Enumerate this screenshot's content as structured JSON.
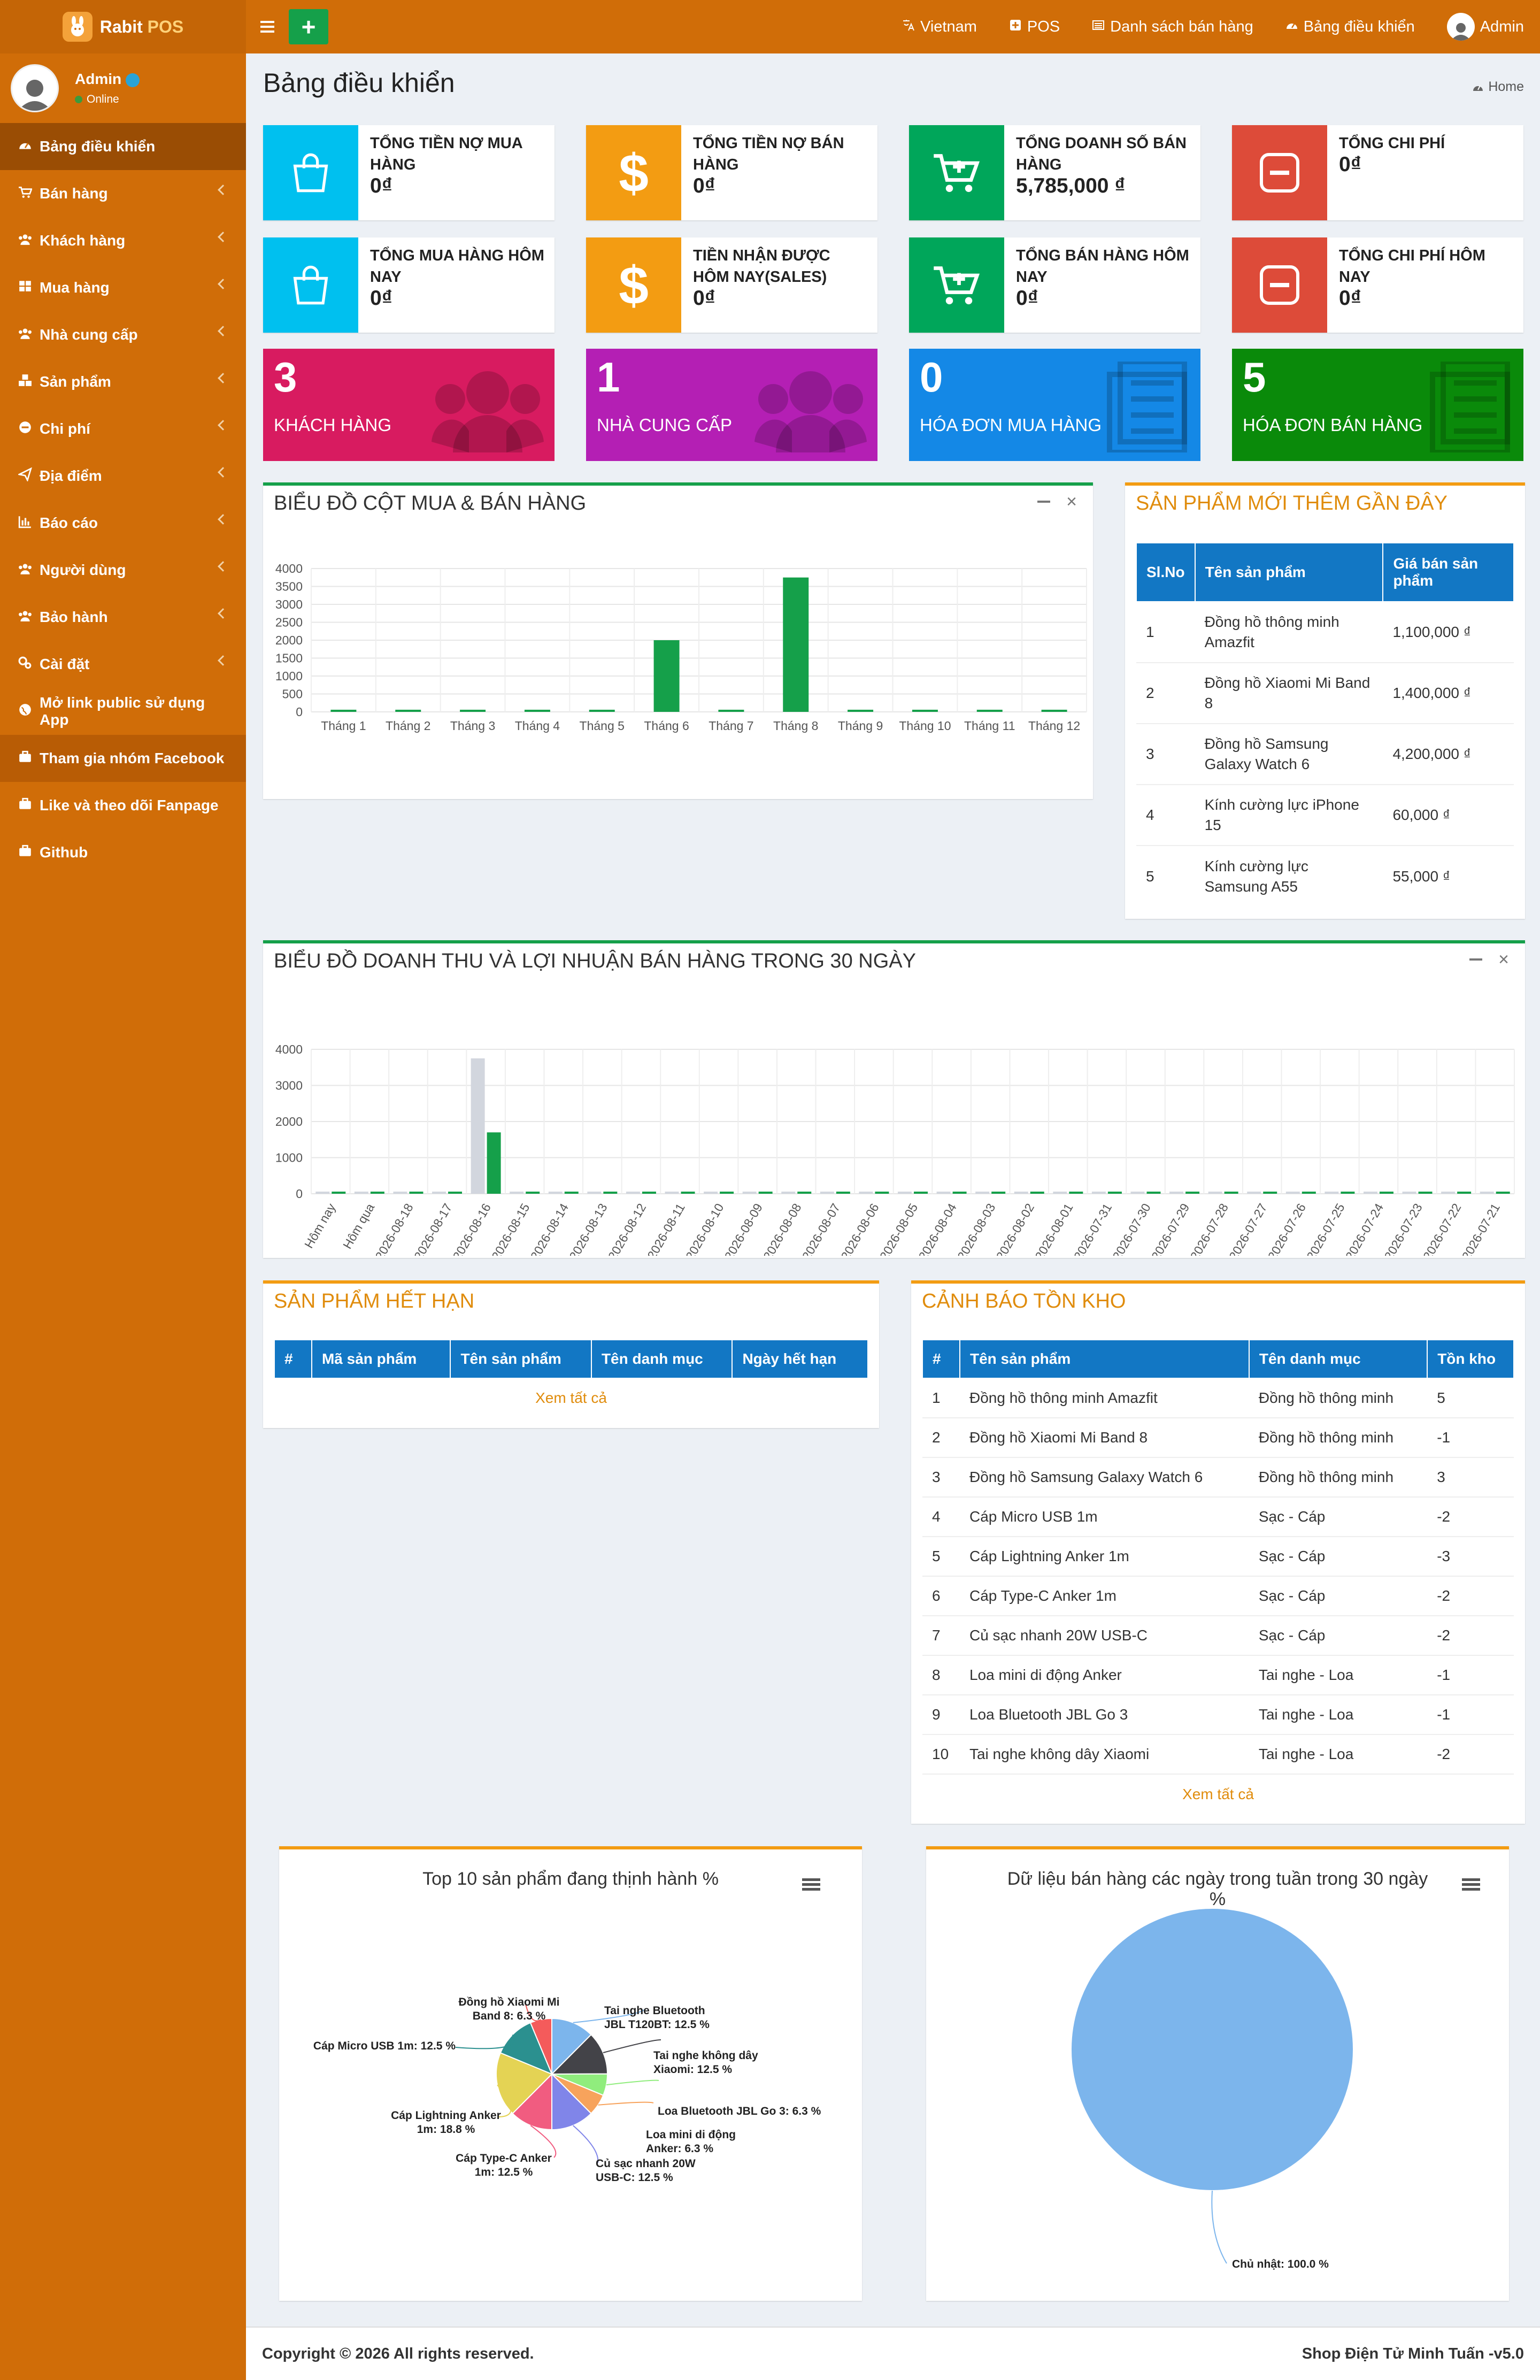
{
  "app": {
    "brand_main": "Rabit",
    "brand_sub": "POS"
  },
  "user_panel": {
    "name": "Admin",
    "status": "Online"
  },
  "sidebar": {
    "items": [
      {
        "label": "Bảng điều khiển",
        "icon": "dashboard-icon"
      },
      {
        "label": "Bán hàng",
        "icon": "cart-icon"
      },
      {
        "label": "Khách hàng",
        "icon": "users-icon"
      },
      {
        "label": "Mua hàng",
        "icon": "grid-icon"
      },
      {
        "label": "Nhà cung cấp",
        "icon": "users-icon"
      },
      {
        "label": "Sản phẩm",
        "icon": "cubes-icon"
      },
      {
        "label": "Chi phí",
        "icon": "minus-circle-icon"
      },
      {
        "label": "Địa điểm",
        "icon": "send-icon"
      },
      {
        "label": "Báo cáo",
        "icon": "bar-chart-icon"
      },
      {
        "label": "Người dùng",
        "icon": "users-icon"
      },
      {
        "label": "Bảo hành",
        "icon": "users-icon"
      },
      {
        "label": "Cài đặt",
        "icon": "gears-icon"
      },
      {
        "label": "Mở link public sử dụng App",
        "icon": "globe-icon"
      },
      {
        "label": "Tham gia nhóm Facebook",
        "icon": "briefcase-icon"
      },
      {
        "label": "Like và theo dõi Fanpage",
        "icon": "briefcase-icon"
      },
      {
        "label": "Github",
        "icon": "briefcase-icon"
      }
    ]
  },
  "header": {
    "nav": [
      {
        "label": "Vietnam",
        "icon": "language-icon"
      },
      {
        "label": "POS",
        "icon": "plus-square-icon"
      },
      {
        "label": "Danh sách bán hàng",
        "icon": "list-icon"
      },
      {
        "label": "Bảng điều khiển",
        "icon": "dashboard-icon"
      }
    ],
    "user": "Admin"
  },
  "page": {
    "title": "Bảng điều khiển",
    "breadcrumb": "Home"
  },
  "info_boxes": [
    {
      "label": "Tổng tiền nợ mua hàng",
      "value": "0₫",
      "color": "#00c0ef",
      "icon": "shopping-bag-icon"
    },
    {
      "label": "Tổng tiền nợ bán hàng",
      "value": "0₫",
      "color": "#f39c12",
      "icon": "dollar-icon"
    },
    {
      "label": "Tổng doanh số bán hàng",
      "value": "5,785,000 ₫",
      "color": "#00a65a",
      "icon": "cart-plus-icon"
    },
    {
      "label": "Tổng chi phí",
      "value": "0₫",
      "color": "#dd4b39",
      "icon": "minus-square-icon"
    },
    {
      "label": "Tổng mua hàng hôm nay",
      "value": "0₫",
      "color": "#00c0ef",
      "icon": "shopping-bag-icon"
    },
    {
      "label": "Tiền nhận được hôm nay(Sales)",
      "value": "0₫",
      "color": "#f39c12",
      "icon": "dollar-icon"
    },
    {
      "label": "Tổng bán hàng hôm nay",
      "value": "0₫",
      "color": "#00a65a",
      "icon": "cart-plus-icon"
    },
    {
      "label": "Tổng chi phí hôm nay",
      "value": "0₫",
      "color": "#dd4b39",
      "icon": "minus-square-icon"
    }
  ],
  "stat_boxes": [
    {
      "number": "3",
      "label": "Khách hàng",
      "color": "#d81b60",
      "icon": "users-bg-icon"
    },
    {
      "number": "1",
      "label": "Nhà cung cấp",
      "color": "#b41fb4",
      "icon": "users-bg-icon"
    },
    {
      "number": "0",
      "label": "Hóa đơn mua hàng",
      "color": "#1488e6",
      "icon": "list-doc-icon"
    },
    {
      "number": "5",
      "label": "Hóa đơn bán hàng",
      "color": "#0a8a0a",
      "icon": "list-doc-icon"
    }
  ],
  "recent_products": {
    "title": "Sản phẩm mới thêm gần đây",
    "columns": [
      "Sl.No",
      "Tên sản phẩm",
      "Giá bán sản phẩm"
    ],
    "rows": [
      [
        "1",
        "Đồng hồ thông minh Amazfit",
        "1,100,000 ₫"
      ],
      [
        "2",
        "Đồng hồ Xiaomi Mi Band 8",
        "1,400,000 ₫"
      ],
      [
        "3",
        "Đồng hồ Samsung Galaxy Watch 6",
        "4,200,000 ₫"
      ],
      [
        "4",
        "Kính cường lực iPhone 15",
        "60,000 ₫"
      ],
      [
        "5",
        "Kính cường lực Samsung A55",
        "55,000 ₫"
      ]
    ]
  },
  "expired": {
    "title": "Sản phẩm hết hạn",
    "columns": [
      "#",
      "Mã sản phẩm",
      "Tên sản phẩm",
      "Tên danh mục",
      "Ngày hết hạn"
    ],
    "see_all": "Xem tất cả"
  },
  "stock": {
    "title": "Cảnh báo tồn kho",
    "columns": [
      "#",
      "Tên sản phẩm",
      "Tên danh mục",
      "Tồn kho"
    ],
    "rows": [
      [
        "1",
        "Đồng hồ thông minh Amazfit",
        "Đồng hồ thông minh",
        "5"
      ],
      [
        "2",
        "Đồng hồ Xiaomi Mi Band 8",
        "Đồng hồ thông minh",
        "-1"
      ],
      [
        "3",
        "Đồng hồ Samsung Galaxy Watch 6",
        "Đồng hồ thông minh",
        "3"
      ],
      [
        "4",
        "Cáp Micro USB 1m",
        "Sạc - Cáp",
        "-2"
      ],
      [
        "5",
        "Cáp Lightning Anker 1m",
        "Sạc - Cáp",
        "-3"
      ],
      [
        "6",
        "Cáp Type-C Anker 1m",
        "Sạc - Cáp",
        "-2"
      ],
      [
        "7",
        "Củ sạc nhanh 20W USB-C",
        "Sạc - Cáp",
        "-2"
      ],
      [
        "8",
        "Loa mini di động Anker",
        "Tai nghe - Loa",
        "-1"
      ],
      [
        "9",
        "Loa Bluetooth JBL Go 3",
        "Tai nghe - Loa",
        "-1"
      ],
      [
        "10",
        "Tai nghe không dây Xiaomi",
        "Tai nghe - Loa",
        "-2"
      ]
    ],
    "see_all": "Xem tất cả"
  },
  "chart_data": [
    {
      "type": "bar",
      "title": "Biểu đồ cột mua & bán hàng",
      "categories": [
        "Tháng 1",
        "Tháng 2",
        "Tháng 3",
        "Tháng 4",
        "Tháng 5",
        "Tháng 6",
        "Tháng 7",
        "Tháng 8",
        "Tháng 9",
        "Tháng 10",
        "Tháng 11",
        "Tháng 12"
      ],
      "series": [
        {
          "values": [
            0,
            0,
            0,
            0,
            0,
            2000,
            0,
            3750,
            0,
            0,
            0,
            0
          ],
          "color": "#15a04a"
        }
      ],
      "ylim": [
        0,
        4000
      ],
      "yticks": [
        0,
        500,
        1000,
        1500,
        2000,
        2500,
        3000,
        3500,
        4000
      ],
      "grid": true
    },
    {
      "type": "bar",
      "title": "Biểu đồ doanh thu và lợi nhuận bán hàng trong 30 ngày",
      "categories": [
        "Hôm nay",
        "Hôm qua",
        "2026-08-18",
        "2026-08-17",
        "2026-08-16",
        "2026-08-15",
        "2026-08-14",
        "2026-08-13",
        "2026-08-12",
        "2026-08-11",
        "2026-08-10",
        "2026-08-09",
        "2026-08-08",
        "2026-08-07",
        "2026-08-06",
        "2026-08-05",
        "2026-08-04",
        "2026-08-03",
        "2026-08-02",
        "2026-08-01",
        "2026-07-31",
        "2026-07-30",
        "2026-07-29",
        "2026-07-28",
        "2026-07-27",
        "2026-07-26",
        "2026-07-25",
        "2026-07-24",
        "2026-07-23",
        "2026-07-22",
        "2026-07-21"
      ],
      "series": [
        {
          "values": [
            0,
            0,
            0,
            0,
            3750,
            0,
            0,
            0,
            0,
            0,
            0,
            0,
            0,
            0,
            0,
            0,
            0,
            0,
            0,
            0,
            0,
            0,
            0,
            0,
            0,
            0,
            0,
            0,
            0,
            0,
            0
          ],
          "color": "#d2d6de"
        },
        {
          "values": [
            0,
            0,
            0,
            0,
            1700,
            0,
            0,
            0,
            0,
            0,
            0,
            0,
            0,
            0,
            0,
            0,
            0,
            0,
            0,
            0,
            0,
            0,
            0,
            0,
            0,
            0,
            0,
            0,
            0,
            0,
            0
          ],
          "color": "#15a04a"
        }
      ],
      "ylim": [
        0,
        4000
      ],
      "yticks": [
        0,
        1000,
        2000,
        3000,
        4000
      ],
      "grid": true
    },
    {
      "type": "pie",
      "title": "Top 10 sản phẩm đang thịnh hành %",
      "slices": [
        {
          "label": "Tai nghe Bluetooth JBL T120BT",
          "value": 12.5,
          "color": "#7cb5ec"
        },
        {
          "label": "Tai nghe không dây Xiaomi",
          "value": 12.5,
          "color": "#434348"
        },
        {
          "label": "Loa Bluetooth JBL Go 3",
          "value": 6.3,
          "color": "#90ed7d"
        },
        {
          "label": "Loa mini di động Anker",
          "value": 6.3,
          "color": "#f7a35c"
        },
        {
          "label": "Củ sạc nhanh 20W USB-C",
          "value": 12.5,
          "color": "#8085e9"
        },
        {
          "label": "Cáp Type-C Anker 1m",
          "value": 12.5,
          "color": "#f15c80"
        },
        {
          "label": "Cáp Lightning Anker 1m",
          "value": 18.8,
          "color": "#e4d354"
        },
        {
          "label": "Cáp Micro USB 1m",
          "value": 12.5,
          "color": "#2b908f"
        },
        {
          "label": "Đồng hồ Xiaomi Mi Band 8",
          "value": 6.3,
          "color": "#f45b5b"
        }
      ]
    },
    {
      "type": "pie",
      "title": "Dữ liệu bán hàng các ngày trong tuần trong 30 ngày %",
      "slices": [
        {
          "label": "Chủ nhật",
          "value": 100.0,
          "color": "#7cb5ec"
        }
      ]
    }
  ],
  "footer": {
    "left": "Copyright © 2026 All rights reserved.",
    "right": "Shop Điện Tử Minh Tuấn -v5.0"
  }
}
